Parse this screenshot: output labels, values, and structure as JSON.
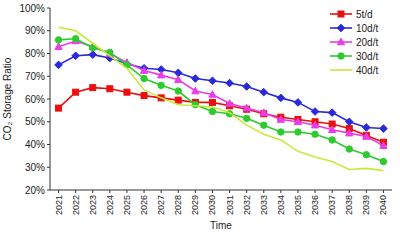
{
  "chart_data": {
    "type": "line",
    "x_label": "Time",
    "y_label": "CO₂ Storage Ratio",
    "categories": [
      "2021",
      "2022",
      "2023",
      "2024",
      "2025",
      "2026",
      "2027",
      "2028",
      "2029",
      "2030",
      "2031",
      "2032",
      "2033",
      "2034",
      "2035",
      "2036",
      "2037",
      "2038",
      "2039",
      "2040"
    ],
    "ylim": [
      20,
      100
    ],
    "yticks": [
      {
        "value": 20,
        "label": "20%"
      },
      {
        "value": 30,
        "label": "30%"
      },
      {
        "value": 40,
        "label": "40%"
      },
      {
        "value": 50,
        "label": "50%"
      },
      {
        "value": 60,
        "label": "60%"
      },
      {
        "value": 70,
        "label": "70%"
      },
      {
        "value": 80,
        "label": "80%"
      },
      {
        "value": 90,
        "label": "90%"
      },
      {
        "value": 100,
        "label": "100%"
      }
    ],
    "grid": false,
    "legend": "top-right",
    "series": [
      {
        "name": "5t/d",
        "color": "#e8100f",
        "marker": "square",
        "values": [
          56,
          63,
          65,
          64.5,
          63,
          61.5,
          60.5,
          59.5,
          58.5,
          58.5,
          57,
          55.5,
          53.5,
          52,
          51,
          50,
          49,
          47,
          44,
          41
        ]
      },
      {
        "name": "10d/t",
        "color": "#2a2ad8",
        "marker": "diamond",
        "values": [
          75,
          79,
          79.5,
          78,
          75.5,
          73.5,
          73,
          71.5,
          69,
          68,
          67,
          65.5,
          63,
          60.5,
          58.5,
          54.5,
          54,
          50,
          47.5,
          47
        ]
      },
      {
        "name": "20d/t",
        "color": "#e83de8",
        "marker": "triangle",
        "values": [
          83,
          85.5,
          83,
          80,
          76,
          72.5,
          70.5,
          68.5,
          63.5,
          62,
          58,
          56,
          54,
          51,
          50,
          48.5,
          46.5,
          45,
          43.5,
          39.5
        ]
      },
      {
        "name": "30d/t",
        "color": "#2dcb2d",
        "marker": "circle",
        "values": [
          86,
          86.5,
          82.5,
          80.5,
          75,
          69,
          66,
          63.5,
          57.5,
          54.5,
          53.5,
          51.5,
          48.5,
          45.5,
          45.5,
          44.5,
          42,
          38,
          35.5,
          32.5
        ]
      },
      {
        "name": "40d/t",
        "color": "#c8e83c",
        "marker": "none",
        "values": [
          91.5,
          90,
          84.5,
          79,
          73.5,
          64,
          60.5,
          57.5,
          57,
          56.5,
          54,
          48.5,
          44.5,
          42,
          37,
          34.5,
          32.5,
          29,
          29.5,
          28.5
        ]
      }
    ]
  }
}
